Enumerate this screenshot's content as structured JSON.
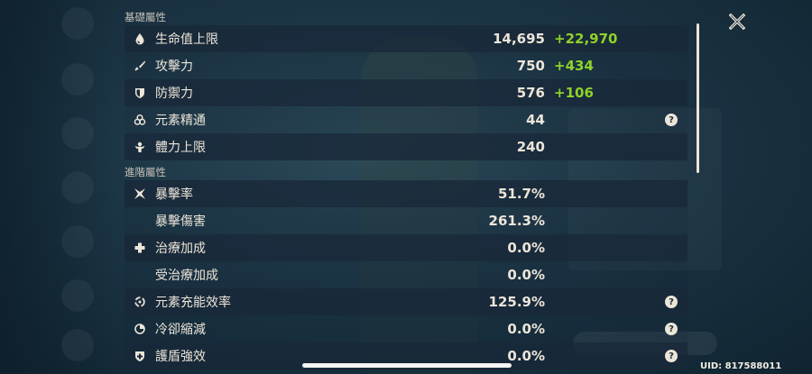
{
  "sections": {
    "base_title": "基礎屬性",
    "advanced_title": "進階屬性"
  },
  "base_stats": [
    {
      "label": "生命值上限",
      "base": "14,695",
      "bonus": "+22,970",
      "icon": "hp-drop-icon"
    },
    {
      "label": "攻擊力",
      "base": "750",
      "bonus": "+434",
      "icon": "sword-icon"
    },
    {
      "label": "防禦力",
      "base": "576",
      "bonus": "+106",
      "icon": "shield-icon"
    },
    {
      "label": "元素精通",
      "base": "44",
      "bonus": "",
      "icon": "elemental-mastery-icon",
      "help": "?"
    },
    {
      "label": "體力上限",
      "base": "240",
      "bonus": "",
      "icon": "stamina-icon"
    }
  ],
  "advanced_stats": [
    {
      "label": "暴擊率",
      "value": "51.7%",
      "icon": "crit-rate-icon"
    },
    {
      "label": "暴擊傷害",
      "value": "261.3%",
      "icon": ""
    },
    {
      "label": "治療加成",
      "value": "0.0%",
      "icon": "healing-plus-icon"
    },
    {
      "label": "受治療加成",
      "value": "0.0%",
      "icon": ""
    },
    {
      "label": "元素充能效率",
      "value": "125.9%",
      "icon": "energy-recharge-icon",
      "help": "?"
    },
    {
      "label": "冷卻縮減",
      "value": "0.0%",
      "icon": "cd-reduction-icon",
      "help": "?"
    },
    {
      "label": "護盾強效",
      "value": "0.0%",
      "icon": "shield-strength-icon",
      "help": "?"
    }
  ],
  "uid": "UID: 817588011",
  "colors": {
    "bonus": "#8ed22a",
    "text": "#ece5d8",
    "row_dark": "#182838"
  }
}
